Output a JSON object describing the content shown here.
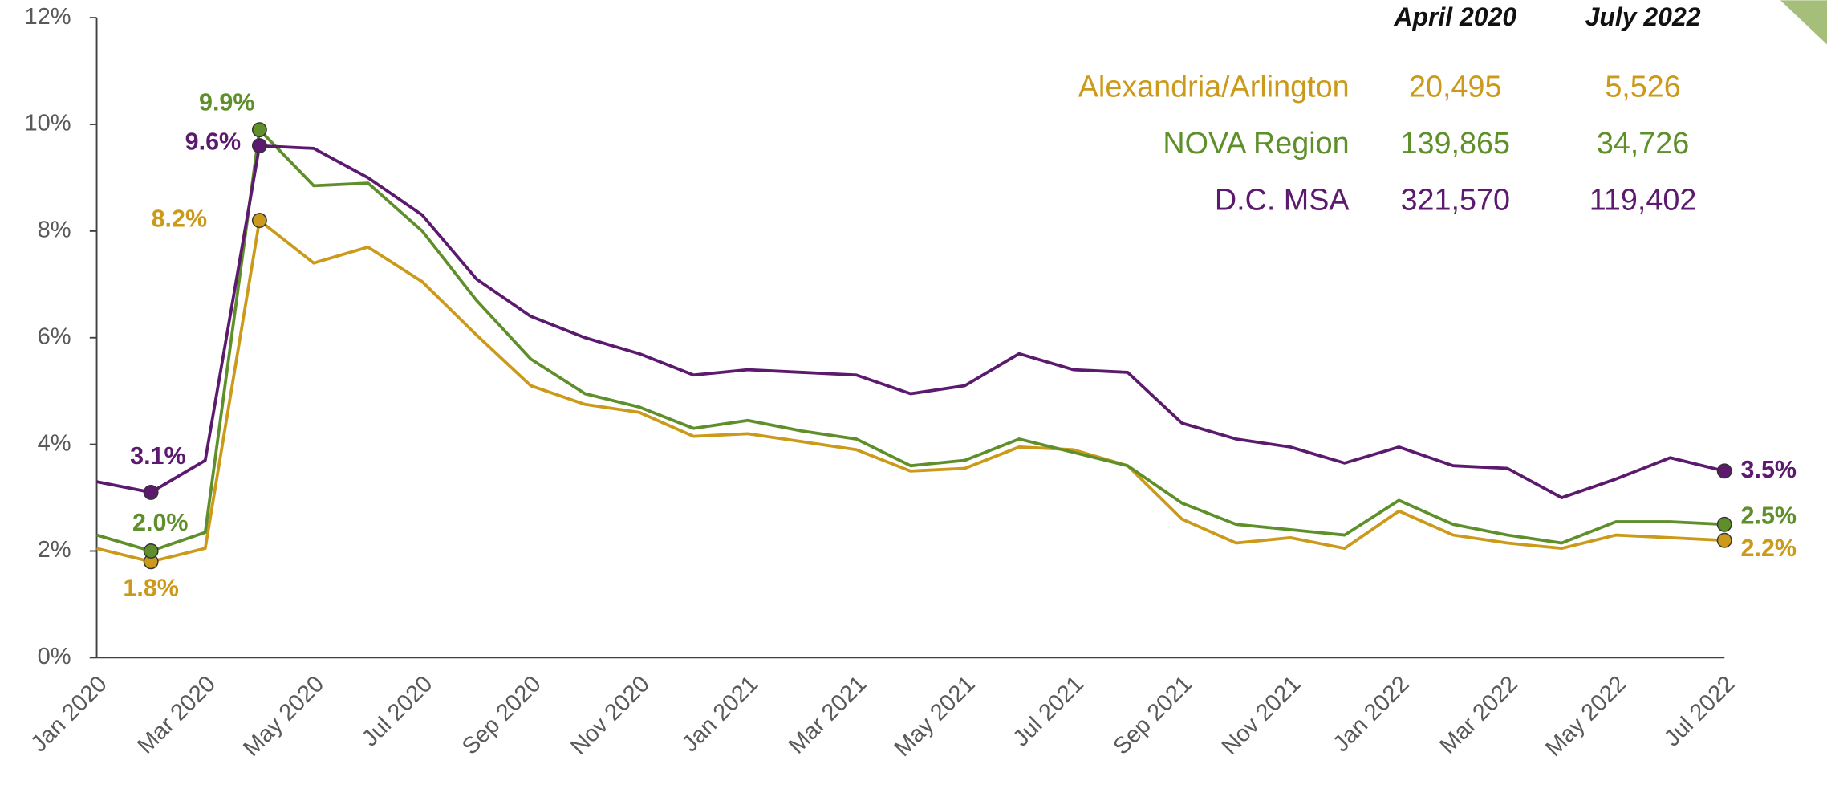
{
  "chart_data": {
    "type": "line",
    "categories": [
      "Jan 2020",
      null,
      "Mar 2020",
      null,
      "May 2020",
      null,
      "Jul 2020",
      null,
      "Sep 2020",
      null,
      "Nov 2020",
      null,
      "Jan 2021",
      null,
      "Mar 2021",
      null,
      "May 2021",
      null,
      "Jul 2021",
      null,
      "Sep 2021",
      null,
      "Nov 2021",
      null,
      "Jan 2022",
      null,
      "Mar 2022",
      null,
      "May 2022",
      null,
      "Jul 2022"
    ],
    "series": [
      {
        "name": "Alexandria/Arlington",
        "color": "#cc9a1a",
        "values": [
          2.05,
          1.8,
          2.05,
          8.2,
          7.4,
          7.7,
          7.05,
          6.05,
          5.1,
          4.75,
          4.6,
          4.15,
          4.2,
          4.05,
          3.9,
          3.5,
          3.55,
          3.95,
          3.9,
          3.6,
          2.6,
          2.15,
          2.25,
          2.05,
          2.75,
          2.3,
          2.15,
          2.05,
          2.3,
          2.25,
          2.2
        ],
        "value_labels": [
          null,
          "1.8%",
          null,
          "8.2%",
          null,
          null,
          null,
          null,
          null,
          null,
          null,
          null,
          null,
          null,
          null,
          null,
          null,
          null,
          null,
          null,
          null,
          null,
          null,
          null,
          null,
          null,
          null,
          null,
          null,
          null,
          "2.2%"
        ]
      },
      {
        "name": "NOVA Region",
        "color": "#5e8f2a",
        "values": [
          2.3,
          2.0,
          2.35,
          9.9,
          8.85,
          8.9,
          8.0,
          6.7,
          5.6,
          4.95,
          4.7,
          4.3,
          4.45,
          4.25,
          4.1,
          3.6,
          3.7,
          4.1,
          3.85,
          3.6,
          2.9,
          2.5,
          2.4,
          2.3,
          2.95,
          2.5,
          2.3,
          2.15,
          2.55,
          2.55,
          2.5
        ],
        "value_labels": [
          null,
          "2.0%",
          null,
          "9.9%",
          null,
          null,
          null,
          null,
          null,
          null,
          null,
          null,
          null,
          null,
          null,
          null,
          null,
          null,
          null,
          null,
          null,
          null,
          null,
          null,
          null,
          null,
          null,
          null,
          null,
          null,
          "2.5%"
        ]
      },
      {
        "name": "D.C. MSA",
        "color": "#5c1a6e",
        "values": [
          3.3,
          3.1,
          3.7,
          9.6,
          9.55,
          9.0,
          8.3,
          7.1,
          6.4,
          6.0,
          5.7,
          5.3,
          5.4,
          5.35,
          5.3,
          4.95,
          5.1,
          5.7,
          5.4,
          5.35,
          4.4,
          4.1,
          3.95,
          3.65,
          3.95,
          3.6,
          3.55,
          3.0,
          3.35,
          3.75,
          3.5
        ],
        "value_labels": [
          null,
          "3.1%",
          null,
          "9.6%",
          null,
          null,
          null,
          null,
          null,
          null,
          null,
          null,
          null,
          null,
          null,
          null,
          null,
          null,
          null,
          null,
          null,
          null,
          null,
          null,
          null,
          null,
          null,
          null,
          null,
          null,
          "3.5%"
        ]
      }
    ],
    "ylim": [
      0,
      12
    ],
    "yticks": [
      {
        "value": 0,
        "label": "0%"
      },
      {
        "value": 2,
        "label": "2%"
      },
      {
        "value": 4,
        "label": "4%"
      },
      {
        "value": 6,
        "label": "6%"
      },
      {
        "value": 8,
        "label": "8%"
      },
      {
        "value": 10,
        "label": "10%"
      },
      {
        "value": 12,
        "label": "12%"
      }
    ],
    "table": {
      "columns": [
        "April 2020",
        "July 2022"
      ],
      "rows": [
        [
          "20,495",
          "5,526"
        ],
        [
          "139,865",
          "34,726"
        ],
        [
          "321,570",
          "119,402"
        ]
      ]
    }
  }
}
